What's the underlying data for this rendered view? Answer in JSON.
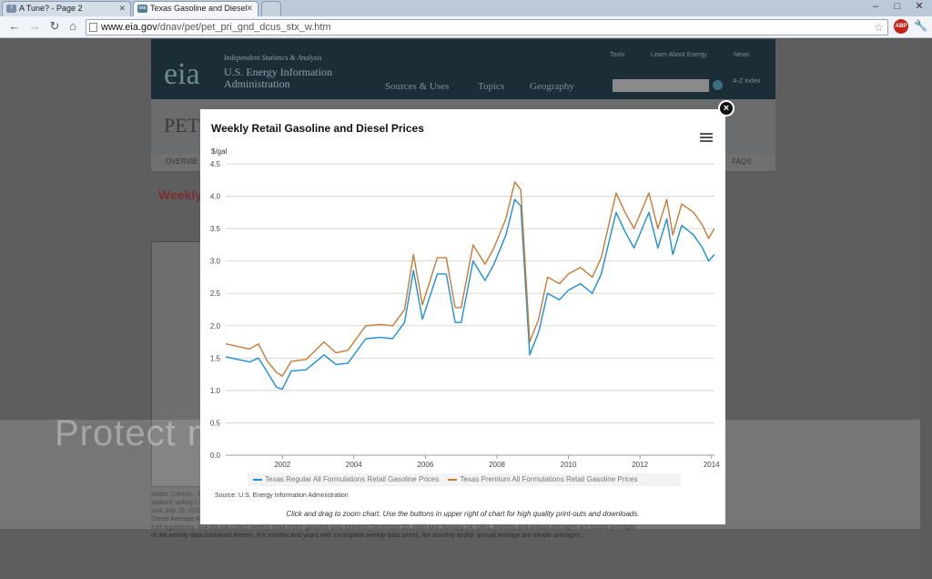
{
  "browser": {
    "tabs": [
      {
        "title": "A Tune? - Page 2",
        "favicon": "forum-favicon"
      },
      {
        "title": "Texas Gasoline and Diesel",
        "favicon": "eia-favicon"
      }
    ],
    "url_host": "www.eia.gov",
    "url_path": "/dnav/pet/pet_pri_gnd_dcus_stx_w.htm",
    "win_min": "–",
    "win_max": "□",
    "win_close": "✕",
    "abp_label": "ABP"
  },
  "site": {
    "logo": "eia",
    "tagline": "Independent Statistics & Analysis",
    "org_name": "U.S. Energy Information Administration",
    "top_links": [
      "Tools",
      "Learn About Energy",
      "News"
    ],
    "nav": [
      "Sources & Uses",
      "Topics",
      "Geography"
    ],
    "az": "A-Z Index",
    "page_title_fragment": "PET",
    "subnav_left": "OVERVIE",
    "subnav_right": "FAQS",
    "weekly_fragment": "Weekly",
    "notes": "Notes: Conver... RFG area is an... Low Sulfur On-Highway Diesel (LSD) prices at the U.S. level was discontinued on December 8, 2008 due to a diminishing number of stations selling LSD as a result of EPA diesel fuel regulations. EIA continued to collect LSD prices from retail outlets and included them in the Diesel Average All Types price until July 26, 2010, when no more outlets reported LSD sales. Beginning July 26, 2010 publication of Ultra Low Sulfur Diesel (ULSD) price became fully represented by the Diesel Average All Types price. As of December 1, 2010 (September 1, 2006 in California), any on-highway diesel fuel sold is ULSD as mandated by EPA on-highway diesel fuel regulations. EIA did not collect weekly retail motor gasoline data between December 10, 1990 and January 14, 1991. Monthly and annual averages are simple averages of the weekly data contained therein. For months and years with incomplete weekly data series, the monthly and/or annual average are simple averages..."
  },
  "watermark": "Protect more of your memories for less!",
  "modal": {
    "title": "Weekly Retail Gasoline and Diesel Prices",
    "close": "×",
    "source": "Source: U.S. Energy Information Administration",
    "caption": "Click and drag to zoom chart. Use the buttons in upper right of chart for high quality print-outs and downloads."
  },
  "chart_data": {
    "type": "line",
    "title": "Weekly Retail Gasoline and Diesel Prices",
    "ylabel": "$/gal",
    "ylim": [
      0,
      4.5
    ],
    "yticks": [
      "0.0",
      "0.5",
      "1.0",
      "1.5",
      "2.0",
      "2.5",
      "3.0",
      "3.5",
      "4.0",
      "4.5"
    ],
    "xticks": [
      "2002",
      "2004",
      "2006",
      "2008",
      "2010",
      "2012",
      "2014"
    ],
    "x_range": [
      "2000-06",
      "2014-02"
    ],
    "grid": true,
    "legend_position": "bottom",
    "series": [
      {
        "name": "Texas Regular All Formulations Retail Gasoline Prices",
        "color": "#1a8fd6",
        "points": [
          [
            "2000-06",
            1.52
          ],
          [
            "2000-10",
            1.48
          ],
          [
            "2001-02",
            1.44
          ],
          [
            "2001-05",
            1.5
          ],
          [
            "2001-08",
            1.28
          ],
          [
            "2001-11",
            1.05
          ],
          [
            "2002-01",
            1.02
          ],
          [
            "2002-04",
            1.3
          ],
          [
            "2002-09",
            1.32
          ],
          [
            "2003-03",
            1.55
          ],
          [
            "2003-07",
            1.4
          ],
          [
            "2003-11",
            1.42
          ],
          [
            "2004-05",
            1.8
          ],
          [
            "2004-10",
            1.82
          ],
          [
            "2005-02",
            1.8
          ],
          [
            "2005-06",
            2.05
          ],
          [
            "2005-09",
            2.85
          ],
          [
            "2005-12",
            2.1
          ],
          [
            "2006-05",
            2.8
          ],
          [
            "2006-08",
            2.8
          ],
          [
            "2006-11",
            2.05
          ],
          [
            "2007-01",
            2.05
          ],
          [
            "2007-05",
            3.0
          ],
          [
            "2007-09",
            2.7
          ],
          [
            "2007-12",
            2.95
          ],
          [
            "2008-04",
            3.4
          ],
          [
            "2008-07",
            3.95
          ],
          [
            "2008-09",
            3.85
          ],
          [
            "2008-12",
            1.55
          ],
          [
            "2009-03",
            1.9
          ],
          [
            "2009-06",
            2.5
          ],
          [
            "2009-10",
            2.4
          ],
          [
            "2010-01",
            2.55
          ],
          [
            "2010-05",
            2.65
          ],
          [
            "2010-09",
            2.5
          ],
          [
            "2010-12",
            2.8
          ],
          [
            "2011-05",
            3.75
          ],
          [
            "2011-08",
            3.45
          ],
          [
            "2011-11",
            3.2
          ],
          [
            "2012-04",
            3.75
          ],
          [
            "2012-07",
            3.2
          ],
          [
            "2012-10",
            3.65
          ],
          [
            "2012-12",
            3.1
          ],
          [
            "2013-03",
            3.55
          ],
          [
            "2013-07",
            3.4
          ],
          [
            "2013-10",
            3.2
          ],
          [
            "2013-12",
            3.0
          ],
          [
            "2014-02",
            3.1
          ]
        ]
      },
      {
        "name": "Texas Premium All Formulations Retail Gasoline Prices",
        "color": "#c77a36",
        "points": [
          [
            "2000-06",
            1.72
          ],
          [
            "2000-10",
            1.68
          ],
          [
            "2001-02",
            1.64
          ],
          [
            "2001-05",
            1.72
          ],
          [
            "2001-08",
            1.45
          ],
          [
            "2001-11",
            1.28
          ],
          [
            "2002-01",
            1.22
          ],
          [
            "2002-04",
            1.45
          ],
          [
            "2002-09",
            1.48
          ],
          [
            "2003-03",
            1.75
          ],
          [
            "2003-07",
            1.58
          ],
          [
            "2003-11",
            1.62
          ],
          [
            "2004-05",
            2.0
          ],
          [
            "2004-10",
            2.02
          ],
          [
            "2005-02",
            2.0
          ],
          [
            "2005-06",
            2.25
          ],
          [
            "2005-09",
            3.1
          ],
          [
            "2005-12",
            2.32
          ],
          [
            "2006-05",
            3.05
          ],
          [
            "2006-08",
            3.05
          ],
          [
            "2006-11",
            2.28
          ],
          [
            "2007-01",
            2.28
          ],
          [
            "2007-05",
            3.25
          ],
          [
            "2007-09",
            2.95
          ],
          [
            "2007-12",
            3.2
          ],
          [
            "2008-04",
            3.65
          ],
          [
            "2008-07",
            4.22
          ],
          [
            "2008-09",
            4.1
          ],
          [
            "2008-12",
            1.75
          ],
          [
            "2009-03",
            2.1
          ],
          [
            "2009-06",
            2.75
          ],
          [
            "2009-10",
            2.65
          ],
          [
            "2010-01",
            2.8
          ],
          [
            "2010-05",
            2.9
          ],
          [
            "2010-09",
            2.75
          ],
          [
            "2010-12",
            3.05
          ],
          [
            "2011-05",
            4.05
          ],
          [
            "2011-08",
            3.75
          ],
          [
            "2011-11",
            3.5
          ],
          [
            "2012-04",
            4.05
          ],
          [
            "2012-07",
            3.5
          ],
          [
            "2012-10",
            3.95
          ],
          [
            "2012-12",
            3.4
          ],
          [
            "2013-03",
            3.88
          ],
          [
            "2013-07",
            3.75
          ],
          [
            "2013-10",
            3.55
          ],
          [
            "2013-12",
            3.35
          ],
          [
            "2014-02",
            3.5
          ]
        ]
      }
    ]
  }
}
